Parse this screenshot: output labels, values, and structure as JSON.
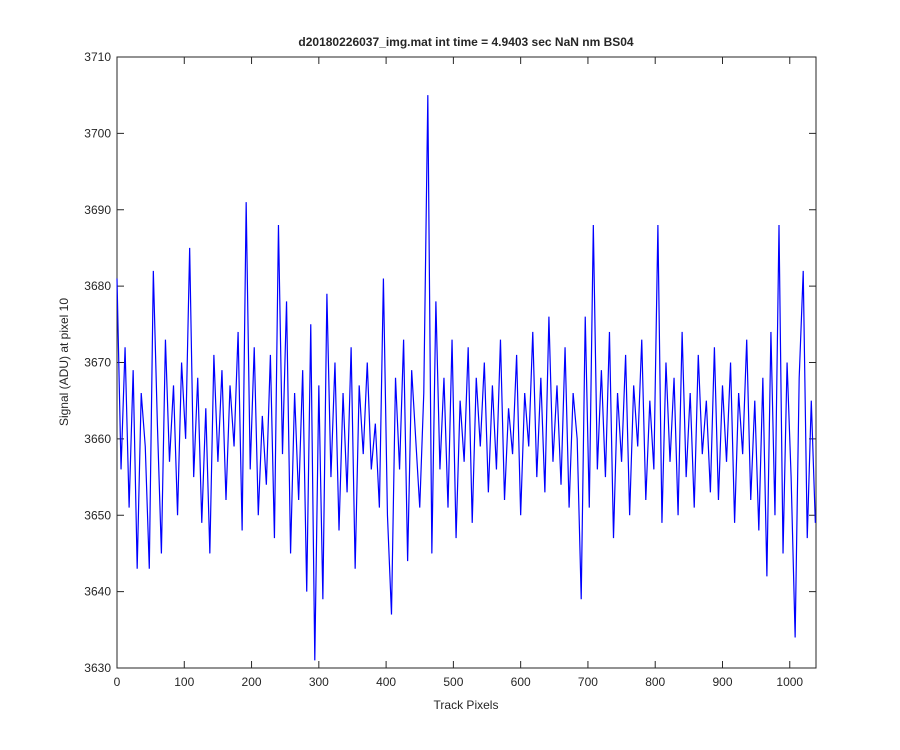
{
  "chart_data": {
    "type": "line",
    "title": "d20180226037_img.mat int time = 4.9403 sec  NaN nm BS04",
    "x_label": "Track Pixels",
    "y_label": "Signal (ADU) at pixel 10",
    "x": [
      0,
      6,
      12,
      18,
      24,
      30,
      36,
      42,
      48,
      54,
      60,
      66,
      72,
      78,
      84,
      90,
      96,
      102,
      108,
      114,
      120,
      126,
      132,
      138,
      144,
      150,
      156,
      162,
      168,
      174,
      180,
      186,
      192,
      198,
      204,
      210,
      216,
      222,
      228,
      234,
      240,
      246,
      252,
      258,
      264,
      270,
      276,
      282,
      288,
      294,
      300,
      306,
      312,
      318,
      324,
      330,
      336,
      342,
      348,
      354,
      360,
      366,
      372,
      378,
      384,
      390,
      396,
      402,
      408,
      414,
      420,
      426,
      432,
      438,
      444,
      450,
      456,
      462,
      468,
      474,
      480,
      486,
      492,
      498,
      504,
      510,
      516,
      522,
      528,
      534,
      540,
      546,
      552,
      558,
      564,
      570,
      576,
      582,
      588,
      594,
      600,
      606,
      612,
      618,
      624,
      630,
      636,
      642,
      648,
      654,
      660,
      666,
      672,
      678,
      684,
      690,
      696,
      702,
      708,
      714,
      720,
      726,
      732,
      738,
      744,
      750,
      756,
      762,
      768,
      774,
      780,
      786,
      792,
      798,
      804,
      810,
      816,
      822,
      828,
      834,
      840,
      846,
      852,
      858,
      864,
      870,
      876,
      882,
      888,
      894,
      900,
      906,
      912,
      918,
      924,
      930,
      936,
      942,
      948,
      954,
      960,
      966,
      972,
      978,
      984,
      990,
      996,
      1002,
      1008,
      1014,
      1020,
      1026,
      1032,
      1038
    ],
    "series": [
      {
        "color": "#0000ff",
        "values": [
          3681,
          3656,
          3672,
          3651,
          3669,
          3643,
          3666,
          3659,
          3643,
          3682,
          3662,
          3645,
          3673,
          3657,
          3667,
          3650,
          3670,
          3660,
          3685,
          3655,
          3668,
          3649,
          3664,
          3645,
          3671,
          3657,
          3669,
          3652,
          3667,
          3659,
          3674,
          3648,
          3691,
          3656,
          3672,
          3650,
          3663,
          3654,
          3671,
          3647,
          3688,
          3658,
          3678,
          3645,
          3666,
          3652,
          3669,
          3640,
          3675,
          3631,
          3667,
          3639,
          3679,
          3655,
          3670,
          3648,
          3666,
          3653,
          3672,
          3643,
          3667,
          3658,
          3670,
          3656,
          3662,
          3651,
          3681,
          3650,
          3637,
          3668,
          3656,
          3673,
          3644,
          3669,
          3660,
          3651,
          3666,
          3705,
          3645,
          3678,
          3656,
          3668,
          3651,
          3673,
          3647,
          3665,
          3657,
          3672,
          3649,
          3668,
          3659,
          3670,
          3653,
          3667,
          3656,
          3673,
          3652,
          3664,
          3658,
          3671,
          3650,
          3666,
          3659,
          3674,
          3655,
          3668,
          3653,
          3676,
          3657,
          3667,
          3654,
          3672,
          3651,
          3666,
          3660,
          3639,
          3676,
          3651,
          3688,
          3656,
          3669,
          3655,
          3674,
          3647,
          3666,
          3657,
          3671,
          3650,
          3667,
          3659,
          3673,
          3652,
          3665,
          3656,
          3688,
          3649,
          3670,
          3657,
          3668,
          3650,
          3674,
          3655,
          3666,
          3651,
          3671,
          3658,
          3665,
          3653,
          3672,
          3652,
          3667,
          3657,
          3670,
          3649,
          3666,
          3658,
          3673,
          3652,
          3665,
          3648,
          3668,
          3642,
          3674,
          3650,
          3688,
          3645,
          3670,
          3655,
          3634,
          3668,
          3682,
          3647,
          3665,
          3649
        ]
      }
    ],
    "xlim": [
      0,
      1039
    ],
    "ylim": [
      3630,
      3710
    ],
    "xticks": [
      0,
      100,
      200,
      300,
      400,
      500,
      600,
      700,
      800,
      900,
      1000
    ],
    "yticks": [
      3630,
      3640,
      3650,
      3660,
      3670,
      3680,
      3690,
      3700,
      3710
    ]
  }
}
